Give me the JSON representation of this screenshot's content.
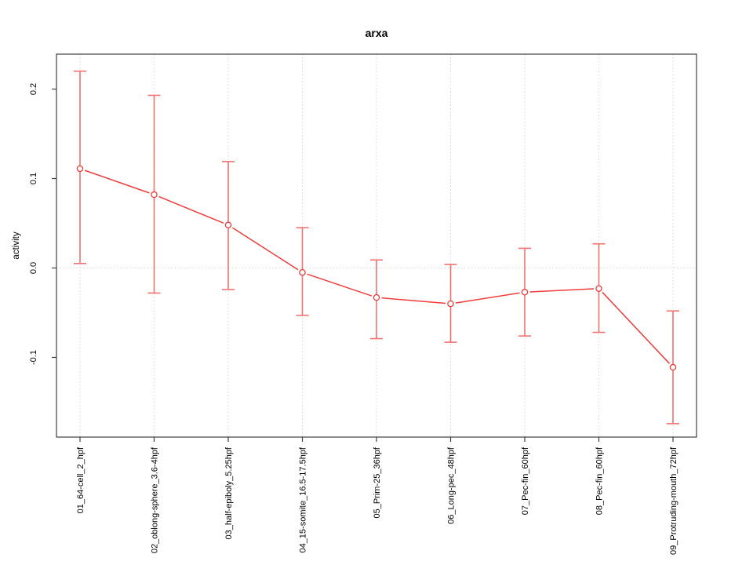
{
  "chart_data": {
    "type": "line",
    "title": "arxa",
    "xlabel": "",
    "ylabel": "activity",
    "categories": [
      "01_64-cell_2_hpf",
      "02_oblong-sphere_3.6-4hpf",
      "03_half-epiboly_5.25hpf",
      "04_15-somite_16.5-17.5hpf",
      "05_Prim-25_36hpf",
      "06_Long-pec_48hpf",
      "07_Pec-fin_60hpf",
      "08_Pec-fin_60hpf",
      "09_Protruding-mouth_72hpf"
    ],
    "series": [
      {
        "name": "arxa activity",
        "values": [
          0.111,
          0.082,
          0.048,
          -0.005,
          -0.033,
          -0.04,
          -0.027,
          -0.023,
          -0.111
        ],
        "error_upper": [
          0.22,
          0.193,
          0.119,
          0.045,
          0.009,
          0.004,
          0.022,
          0.027,
          -0.048
        ],
        "error_lower": [
          0.005,
          -0.028,
          -0.024,
          -0.053,
          -0.079,
          -0.083,
          -0.076,
          -0.072,
          -0.174
        ]
      }
    ],
    "ytick_values": [
      -0.1,
      0.0,
      0.1,
      0.2
    ],
    "ytick_labels": [
      "-0.1",
      "0.0",
      "0.1",
      "0.2"
    ],
    "ylim": [
      -0.189,
      0.239
    ],
    "grid": {
      "horizontal_at": 0.0,
      "vertical": "each-category",
      "line_style": "dotted"
    },
    "legend": "none",
    "marker": "open-circle",
    "colors": {
      "series": "#f03c3c",
      "error_bar": "#f25050",
      "grid": "#d8d8d8",
      "axis": "#404040",
      "text": "#000000",
      "background": "#ffffff"
    }
  }
}
